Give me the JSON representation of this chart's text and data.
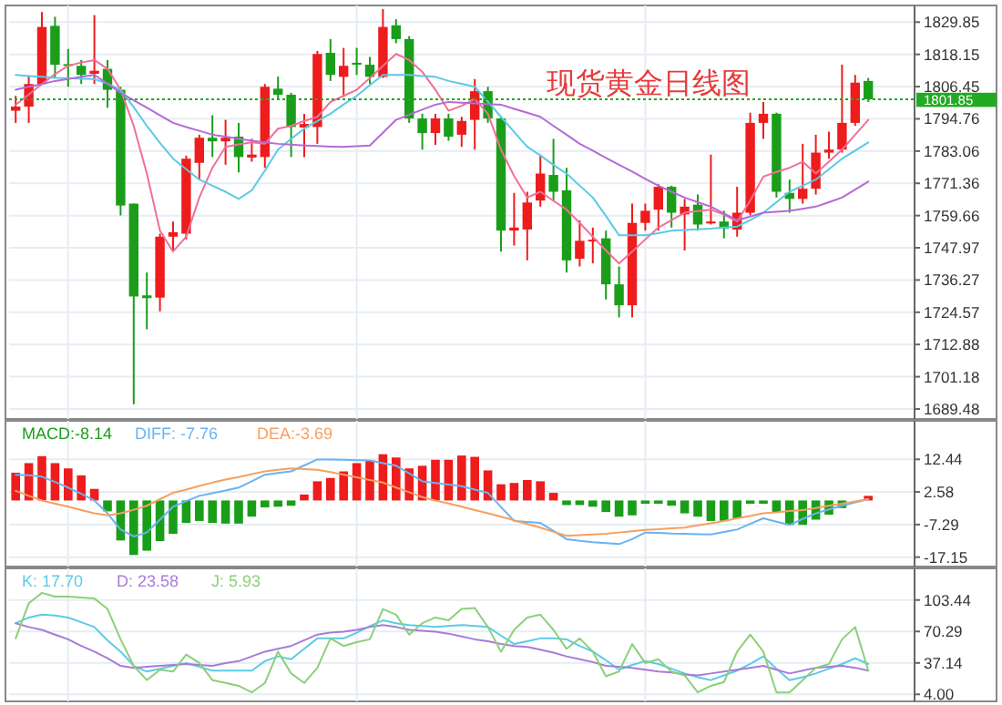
{
  "chart_data": [
    {
      "type": "candlestick",
      "title": "现货黄金日线图",
      "categories": [
        null,
        null,
        null,
        null,
        null,
        null,
        null,
        null,
        null,
        null,
        null,
        null,
        null,
        null,
        null,
        null,
        null,
        null,
        null,
        null,
        null,
        null,
        null,
        null,
        null,
        null,
        null,
        null,
        null,
        null,
        null,
        null,
        null,
        null,
        null,
        null,
        null,
        null,
        null,
        null,
        null,
        null,
        null,
        null,
        null,
        null,
        null,
        null,
        null,
        null,
        null,
        null,
        null,
        null,
        null,
        null,
        null,
        null,
        null,
        null,
        null,
        null,
        null,
        null,
        null,
        null
      ],
      "ohlc": [
        [
          1797.7,
          1803.1,
          1793.3,
          1799.2
        ],
        [
          1799.2,
          1810.1,
          1793.3,
          1807.4
        ],
        [
          1807.4,
          1833.5,
          1807.4,
          1828.1
        ],
        [
          1828.5,
          1831.8,
          1809.6,
          1814.4
        ],
        [
          1814.6,
          1820.1,
          1806.4,
          1814.0
        ],
        [
          1814.0,
          1816.1,
          1807.4,
          1810.7
        ],
        [
          1811.1,
          1832.4,
          1807.4,
          1812.2
        ],
        [
          1812.9,
          1816.1,
          1798.8,
          1805.3
        ],
        [
          1805.3,
          1806.4,
          1759.7,
          1763.3
        ],
        [
          1764.0,
          1764.0,
          1691.2,
          1730.3
        ],
        [
          1730.7,
          1739.0,
          1718.4,
          1729.7
        ],
        [
          1729.9,
          1753.1,
          1724.9,
          1752.0
        ],
        [
          1752.0,
          1757.5,
          1746.6,
          1753.6
        ],
        [
          1753.1,
          1781.4,
          1751.0,
          1780.3
        ],
        [
          1778.8,
          1789.0,
          1772.7,
          1787.9
        ],
        [
          1787.9,
          1796.1,
          1780.9,
          1786.6
        ],
        [
          1786.6,
          1794.4,
          1778.1,
          1787.9
        ],
        [
          1788.3,
          1793.3,
          1775.3,
          1780.9
        ],
        [
          1780.7,
          1787.5,
          1779.2,
          1781.8
        ],
        [
          1780.9,
          1807.4,
          1777.0,
          1806.4
        ],
        [
          1805.7,
          1810.1,
          1802.0,
          1803.5
        ],
        [
          1803.5,
          1804.2,
          1780.9,
          1791.8
        ],
        [
          1791.6,
          1796.6,
          1780.9,
          1792.9
        ],
        [
          1791.8,
          1819.4,
          1785.7,
          1818.3
        ],
        [
          1818.7,
          1823.7,
          1808.5,
          1810.7
        ],
        [
          1810.0,
          1820.5,
          1802.7,
          1814.0
        ],
        [
          1815.1,
          1820.5,
          1810.7,
          1814.4
        ],
        [
          1814.4,
          1817.2,
          1807.4,
          1810.0
        ],
        [
          1810.0,
          1834.6,
          1809.6,
          1828.1
        ],
        [
          1828.7,
          1830.9,
          1822.2,
          1823.7
        ],
        [
          1823.7,
          1824.8,
          1793.3,
          1794.9
        ],
        [
          1794.9,
          1796.6,
          1783.6,
          1789.6
        ],
        [
          1789.6,
          1796.6,
          1785.3,
          1794.9
        ],
        [
          1794.9,
          1796.6,
          1786.8,
          1788.3
        ],
        [
          1789.0,
          1795.5,
          1784.6,
          1794.0
        ],
        [
          1794.4,
          1809.2,
          1783.6,
          1804.8
        ],
        [
          1804.8,
          1806.4,
          1793.3,
          1794.9
        ],
        [
          1794.9,
          1795.5,
          1746.6,
          1754.2
        ],
        [
          1754.2,
          1767.9,
          1748.8,
          1755.3
        ],
        [
          1754.6,
          1768.3,
          1743.4,
          1764.4
        ],
        [
          1765.1,
          1781.8,
          1762.9,
          1774.9
        ],
        [
          1774.4,
          1787.5,
          1765.1,
          1768.3
        ],
        [
          1768.8,
          1777.0,
          1739.0,
          1743.4
        ],
        [
          1744.0,
          1757.9,
          1741.2,
          1750.5
        ],
        [
          1750.3,
          1755.3,
          1742.3,
          1750.9
        ],
        [
          1751.4,
          1754.2,
          1729.2,
          1734.7
        ],
        [
          1734.7,
          1741.2,
          1722.7,
          1727.1
        ],
        [
          1727.1,
          1764.0,
          1722.7,
          1757.0
        ],
        [
          1757.0,
          1764.0,
          1754.2,
          1761.4
        ],
        [
          1761.8,
          1771.0,
          1754.2,
          1770.1
        ],
        [
          1770.1,
          1770.5,
          1755.3,
          1760.7
        ],
        [
          1760.1,
          1765.7,
          1747.0,
          1762.9
        ],
        [
          1763.6,
          1767.3,
          1754.2,
          1756.4
        ],
        [
          1756.8,
          1781.8,
          1756.4,
          1757.5
        ],
        [
          1757.5,
          1761.4,
          1751.4,
          1754.9
        ],
        [
          1754.6,
          1770.1,
          1752.0,
          1760.7
        ],
        [
          1760.7,
          1797.0,
          1759.7,
          1793.3
        ],
        [
          1793.3,
          1800.9,
          1787.5,
          1796.6
        ],
        [
          1796.6,
          1797.0,
          1766.2,
          1768.3
        ],
        [
          1767.9,
          1772.7,
          1760.7,
          1765.7
        ],
        [
          1765.7,
          1785.7,
          1764.0,
          1769.4
        ],
        [
          1769.4,
          1789.0,
          1767.3,
          1782.5
        ],
        [
          1782.5,
          1790.1,
          1780.3,
          1783.6
        ],
        [
          1783.6,
          1814.4,
          1782.5,
          1793.3
        ],
        [
          1793.3,
          1810.7,
          1792.2,
          1807.9
        ],
        [
          1808.5,
          1809.6,
          1800.9,
          1801.85
        ]
      ],
      "colors": [
        "#ee1c1c",
        "#ee1c1c",
        "#ee1c1c",
        "#1a9e1a",
        "#1a9e1a",
        "#1a9e1a",
        "#ee1c1c",
        "#1a9e1a",
        "#1a9e1a",
        "#1a9e1a",
        "#1a9e1a",
        "#ee1c1c",
        "#ee1c1c",
        "#ee1c1c",
        "#ee1c1c",
        "#1a9e1a",
        "#ee1c1c",
        "#1a9e1a",
        "#ee1c1c",
        "#ee1c1c",
        "#1a9e1a",
        "#1a9e1a",
        "#ee1c1c",
        "#ee1c1c",
        "#1a9e1a",
        "#ee1c1c",
        "#1a9e1a",
        "#1a9e1a",
        "#ee1c1c",
        "#1a9e1a",
        "#1a9e1a",
        "#1a9e1a",
        "#ee1c1c",
        "#1a9e1a",
        "#ee1c1c",
        "#ee1c1c",
        "#1a9e1a",
        "#1a9e1a",
        "#ee1c1c",
        "#ee1c1c",
        "#ee1c1c",
        "#1a9e1a",
        "#1a9e1a",
        "#ee1c1c",
        "#ee1c1c",
        "#1a9e1a",
        "#1a9e1a",
        "#ee1c1c",
        "#ee1c1c",
        "#ee1c1c",
        "#1a9e1a",
        "#ee1c1c",
        "#1a9e1a",
        "#ee1c1c",
        "#1a9e1a",
        "#ee1c1c",
        "#ee1c1c",
        "#ee1c1c",
        "#1a9e1a",
        "#1a9e1a",
        "#ee1c1c",
        "#ee1c1c",
        "#ee1c1c",
        "#ee1c1c",
        "#ee1c1c",
        "#1a9e1a"
      ],
      "series": [
        {
          "type": "line",
          "color": "#f07098",
          "values": [
            1799.9,
            1803.6,
            1807.4,
            1811.0,
            1814.0,
            1815.2,
            1816.1,
            1812.9,
            1805.3,
            1792.2,
            1774.9,
            1754.2,
            1746.6,
            1752.0,
            1766.2,
            1777.0,
            1784.6,
            1785.5,
            1786.2,
            1785.7,
            1791.2,
            1792.2,
            1794.0,
            1795.5,
            1800.9,
            1803.1,
            1805.3,
            1809.5,
            1814.0,
            1818.3,
            1816.1,
            1811.8,
            1805.3,
            1797.7,
            1799.5,
            1802.0,
            1796.6,
            1783.6,
            1774.0,
            1766.2,
            1768.3,
            1765.0,
            1761.8,
            1757.0,
            1752.0,
            1747.0,
            1742.3,
            1746.6,
            1751.0,
            1755.3,
            1758.0,
            1760.7,
            1761.3,
            1761.8,
            1760.0,
            1757.5,
            1765.1,
            1773.8,
            1775.5,
            1777.0,
            1779.2,
            1774.9,
            1779.2,
            1783.6,
            1789.0,
            1794.4
          ]
        },
        {
          "type": "line",
          "color": "#5cc8e6",
          "values": [
            1810.7,
            1810.3,
            1810.0,
            1809.6,
            1809.5,
            1809.3,
            1809.2,
            1807.5,
            1805.3,
            1799.0,
            1792.2,
            1786.0,
            1780.3,
            1776.5,
            1772.7,
            1770.5,
            1768.3,
            1765.7,
            1768.8,
            1776.0,
            1783.6,
            1787.5,
            1791.2,
            1794.0,
            1796.6,
            1800.0,
            1803.1,
            1807.0,
            1810.7,
            1810.7,
            1810.7,
            1810.3,
            1810.0,
            1808.5,
            1807.5,
            1806.4,
            1801.0,
            1795.5,
            1790.0,
            1784.6,
            1781.5,
            1778.0,
            1774.9,
            1770.5,
            1766.2,
            1759.5,
            1752.5,
            1752.5,
            1752.5,
            1753.3,
            1754.2,
            1754.4,
            1754.7,
            1754.9,
            1755.3,
            1755.7,
            1758.0,
            1760.7,
            1764.5,
            1768.3,
            1770.5,
            1772.7,
            1776.5,
            1780.3,
            1783.2,
            1786.2
          ]
        },
        {
          "type": "line",
          "color": "#b56ad6",
          "values": [
            1805.3,
            1806.4,
            1807.4,
            1808.5,
            1809.2,
            1810.0,
            1810.7,
            1807.5,
            1804.2,
            1801.5,
            1798.8,
            1796.0,
            1793.3,
            1791.8,
            1790.4,
            1789.0,
            1788.3,
            1787.5,
            1786.8,
            1786.2,
            1785.7,
            1785.4,
            1785.1,
            1784.9,
            1784.7,
            1784.6,
            1784.8,
            1785.1,
            1789.7,
            1794.4,
            1796.3,
            1798.1,
            1799.9,
            1800.9,
            1800.6,
            1800.4,
            1800.1,
            1799.9,
            1798.4,
            1797.0,
            1795.5,
            1792.2,
            1789.0,
            1785.7,
            1783.2,
            1780.6,
            1778.1,
            1775.6,
            1773.0,
            1770.5,
            1768.3,
            1766.2,
            1764.5,
            1762.9,
            1760.4,
            1757.9,
            1759.3,
            1760.7,
            1761.0,
            1761.4,
            1762.1,
            1762.9,
            1764.5,
            1766.2,
            1769.1,
            1772.0
          ]
        }
      ],
      "ylim": [
        1686.5,
        1835.9
      ],
      "yticks": [
        1829.85,
        1818.15,
        1806.45,
        1794.76,
        1783.06,
        1771.36,
        1759.66,
        1747.97,
        1736.27,
        1724.57,
        1712.88,
        1701.18,
        1689.48
      ],
      "ref_lines": [
        {
          "axis": "y",
          "value": 1801.85,
          "label": "1801.85",
          "color": "#22aa22",
          "line_style": "dotted"
        }
      ],
      "grid": true,
      "tick_labels": "y"
    },
    {
      "type": "bar",
      "categories": [
        null,
        null,
        null,
        null,
        null,
        null,
        null,
        null,
        null,
        null,
        null,
        null,
        null,
        null,
        null,
        null,
        null,
        null,
        null,
        null,
        null,
        null,
        null,
        null,
        null,
        null,
        null,
        null,
        null,
        null,
        null,
        null,
        null,
        null,
        null,
        null,
        null,
        null,
        null,
        null,
        null,
        null,
        null,
        null,
        null,
        null,
        null,
        null,
        null,
        null,
        null,
        null,
        null,
        null,
        null,
        null,
        null,
        null,
        null,
        null,
        null,
        null,
        null,
        null,
        null,
        null
      ],
      "series": [
        {
          "type": "bar",
          "name": "MACD:-8.14",
          "color": "#1a9e1a",
          "colors": [
            "#ee1c1c",
            "#ee1c1c",
            "#ee1c1c",
            "#ee1c1c",
            "#ee1c1c",
            "#ee1c1c",
            "#ee1c1c",
            "#1a9e1a",
            "#1a9e1a",
            "#1a9e1a",
            "#1a9e1a",
            "#1a9e1a",
            "#1a9e1a",
            "#1a9e1a",
            "#1a9e1a",
            "#1a9e1a",
            "#1a9e1a",
            "#1a9e1a",
            "#1a9e1a",
            "#1a9e1a",
            "#1a9e1a",
            "#1a9e1a",
            "#ee1c1c",
            "#ee1c1c",
            "#ee1c1c",
            "#ee1c1c",
            "#ee1c1c",
            "#ee1c1c",
            "#ee1c1c",
            "#ee1c1c",
            "#ee1c1c",
            "#ee1c1c",
            "#ee1c1c",
            "#ee1c1c",
            "#ee1c1c",
            "#ee1c1c",
            "#ee1c1c",
            "#ee1c1c",
            "#ee1c1c",
            "#ee1c1c",
            "#ee1c1c",
            "#ee1c1c",
            "#1a9e1a",
            "#1a9e1a",
            "#1a9e1a",
            "#1a9e1a",
            "#1a9e1a",
            "#1a9e1a",
            "#1a9e1a",
            "#1a9e1a",
            "#1a9e1a",
            "#1a9e1a",
            "#1a9e1a",
            "#1a9e1a",
            "#1a9e1a",
            "#1a9e1a",
            "#1a9e1a",
            "#1a9e1a",
            "#1a9e1a",
            "#1a9e1a",
            "#1a9e1a",
            "#1a9e1a",
            "#1a9e1a",
            "#1a9e1a",
            null,
            "#ee1c1c"
          ],
          "values": [
            8.4,
            11.3,
            13.4,
            11.3,
            9.7,
            7.6,
            3.5,
            -3.3,
            -12.1,
            -16.5,
            -15.2,
            -12.3,
            -10.1,
            -6.8,
            -6.2,
            -6.8,
            -7.0,
            -7.0,
            -4.9,
            -2.1,
            -1.9,
            -1.6,
            1.8,
            5.8,
            6.8,
            8.8,
            11.3,
            12.1,
            14.0,
            13.0,
            9.7,
            10.5,
            12.3,
            12.3,
            13.6,
            13.2,
            9.1,
            4.9,
            5.3,
            6.2,
            5.8,
            2.3,
            -1.4,
            -1.4,
            -1.9,
            -3.5,
            -4.9,
            -4.5,
            -1.0,
            -1.0,
            -1.6,
            -3.9,
            -4.9,
            -6.2,
            -6.2,
            -5.4,
            -1.0,
            -1.0,
            -3.5,
            -7.4,
            -7.4,
            -5.8,
            -4.3,
            -2.3,
            null,
            1.4
          ]
        },
        {
          "type": "line",
          "name": "DIFF: -7.76",
          "color": "#6ab2f2",
          "values": [
            7.8,
            7.6,
            7.2,
            5.6,
            3.9,
            2.0,
            0,
            -3.9,
            -8.8,
            -10.9,
            -9.7,
            -5.8,
            -1.9,
            -0.2,
            1.4,
            2.2,
            3.0,
            3.9,
            5.8,
            7.8,
            8.3,
            8.8,
            10.6,
            12.4,
            12.4,
            12.3,
            12.2,
            12.1,
            11.3,
            10.5,
            8.2,
            5.8,
            5.3,
            4.8,
            4.3,
            3.3,
            2.3,
            -2.0,
            -6.2,
            -6.5,
            -6.8,
            -9.2,
            -11.7,
            -12.2,
            -12.6,
            -12.9,
            -13.2,
            -11.7,
            -9.7,
            -9.8,
            -10.0,
            -10.1,
            -10.2,
            -10.3,
            -9.5,
            -8.8,
            -7.1,
            -5.4,
            -6.4,
            -7.4,
            -5.6,
            -3.9,
            -2.7,
            -1.6,
            -0.6,
            0.4
          ]
        },
        {
          "type": "line",
          "name": "DEA:-3.69",
          "color": "#f5a060",
          "values": [
            2.9,
            1.4,
            0,
            -1.0,
            -1.9,
            -2.9,
            -3.9,
            -4.5,
            -3.9,
            -2.8,
            -1.6,
            0.4,
            2.3,
            3.3,
            4.4,
            5.4,
            6.3,
            7.1,
            8.0,
            8.8,
            9.3,
            9.7,
            9.5,
            9.3,
            8.6,
            7.8,
            7.0,
            6.2,
            5.4,
            3.9,
            2.5,
            1.0,
            0,
            -0.9,
            -1.9,
            -2.9,
            -3.9,
            -4.9,
            -6.0,
            -7.1,
            -8.2,
            -9.5,
            -10.7,
            -10.5,
            -10.3,
            -10.1,
            -9.7,
            -9.3,
            -8.9,
            -8.7,
            -8.4,
            -8.2,
            -7.5,
            -6.9,
            -6.2,
            -5.4,
            -4.7,
            -3.9,
            -3.6,
            -3.2,
            -2.9,
            -2.3,
            -1.6,
            -1.0,
            -0.3,
            0.4
          ]
        }
      ],
      "ylim": [
        -20,
        24.1
      ],
      "yticks": [
        12.44,
        2.58,
        -7.29,
        -17.15
      ],
      "grid": true,
      "tick_labels": "y",
      "legend": "top left"
    },
    {
      "type": "line",
      "categories": [
        null,
        null,
        null,
        null,
        null,
        null,
        null,
        null,
        null,
        null,
        null,
        null,
        null,
        null,
        null,
        null,
        null,
        null,
        null,
        null,
        null,
        null,
        null,
        null,
        null,
        null,
        null,
        null,
        null,
        null,
        null,
        null,
        null,
        null,
        null,
        null,
        null,
        null,
        null,
        null,
        null,
        null,
        null,
        null,
        null,
        null,
        null,
        null,
        null,
        null,
        null,
        null,
        null,
        null,
        null,
        null,
        null,
        null,
        null,
        null,
        null,
        null,
        null,
        null,
        null,
        null
      ],
      "series": [
        {
          "name": "K: 17.70",
          "color": "#5ccbe6",
          "values": [
            79,
            85,
            88,
            87,
            85,
            80,
            75,
            61,
            49,
            34,
            28,
            31,
            34,
            37,
            33,
            29,
            29,
            29,
            29,
            39,
            44,
            41,
            52,
            63,
            63,
            63,
            69,
            76,
            82,
            79,
            77,
            76,
            75,
            76,
            77,
            76,
            75,
            66,
            57,
            60,
            63,
            63,
            62,
            55,
            49,
            40,
            30,
            35,
            39,
            36,
            31,
            26,
            22,
            19,
            24,
            29,
            36,
            44,
            31,
            19,
            22,
            26,
            31,
            36,
            42,
            36
          ]
        },
        {
          "name": "D: 23.58",
          "color": "#a77cd8",
          "values": [
            79,
            75,
            72,
            67,
            62,
            55,
            49,
            42,
            34,
            32,
            33,
            34,
            35,
            36,
            35,
            34,
            37,
            39,
            44,
            49,
            52,
            55,
            61,
            67,
            69,
            70,
            72,
            75,
            77,
            75,
            72,
            71,
            70,
            68,
            65,
            62,
            60,
            57,
            55,
            54,
            51,
            48,
            44,
            41,
            38,
            34,
            33,
            32,
            30,
            28,
            27,
            25,
            24,
            26,
            28,
            30,
            32,
            34,
            30,
            26,
            29,
            32,
            33,
            34,
            32,
            29
          ]
        },
        {
          "name": "J: 5.93",
          "color": "#8cd07a",
          "values": [
            63,
            100,
            111,
            107,
            107,
            106,
            105,
            94,
            62,
            34,
            19,
            30,
            28,
            46,
            37,
            19,
            16,
            13,
            6,
            16,
            49,
            26,
            16,
            32,
            63,
            55,
            59,
            62,
            94,
            88,
            67,
            79,
            85,
            82,
            94,
            95,
            75,
            49,
            72,
            85,
            88,
            72,
            52,
            63,
            49,
            23,
            28,
            57,
            37,
            41,
            28,
            24,
            6,
            13,
            17,
            49,
            67,
            49,
            6,
            6,
            19,
            32,
            36,
            62,
            75,
            29
          ]
        }
      ],
      "ylim": [
        -3.4,
        136.8
      ],
      "yticks": [
        103.44,
        70.29,
        37.14,
        {
          "value": 4,
          "label": "4.00"
        }
      ],
      "grid": true,
      "tick_labels": "y",
      "legend": "top left"
    }
  ]
}
